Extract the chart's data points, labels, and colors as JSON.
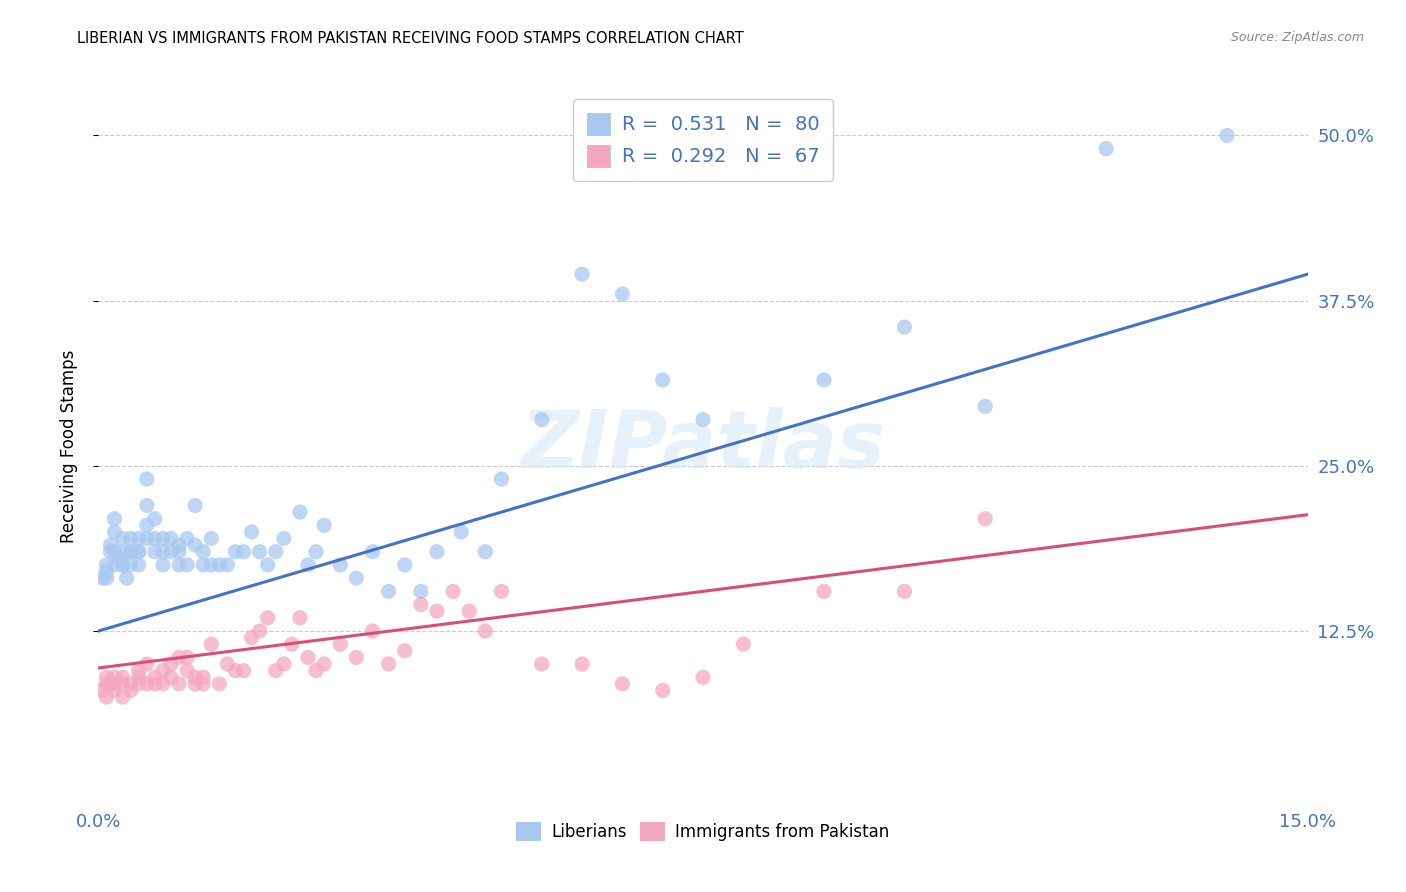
{
  "title": "LIBERIAN VS IMMIGRANTS FROM PAKISTAN RECEIVING FOOD STAMPS CORRELATION CHART",
  "source": "Source: ZipAtlas.com",
  "ylabel": "Receiving Food Stamps",
  "xlim": [
    0.0,
    0.15
  ],
  "ylim": [
    -0.005,
    0.535
  ],
  "yticks": [
    0.125,
    0.25,
    0.375,
    0.5
  ],
  "ytick_labels": [
    "12.5%",
    "25.0%",
    "37.5%",
    "50.0%"
  ],
  "xticks": [
    0.0,
    0.05,
    0.1,
    0.15
  ],
  "xtick_labels": [
    "0.0%",
    "",
    "",
    "15.0%"
  ],
  "watermark": "ZIPatlas",
  "color_liberian": "#A8C8F0",
  "color_pakistan": "#F4A8C0",
  "color_line_liberian": "#4472C4",
  "color_line_pakistan": "#D94F70",
  "background_color": "#FFFFFF",
  "lib_line_x0": 0.0,
  "lib_line_y0": 0.125,
  "lib_line_x1": 0.15,
  "lib_line_y1": 0.395,
  "pak_line_x0": 0.0,
  "pak_line_y0": 0.097,
  "pak_line_x1": 0.15,
  "pak_line_y1": 0.213,
  "liberian_x": [
    0.0005,
    0.001,
    0.001,
    0.001,
    0.0015,
    0.0015,
    0.002,
    0.002,
    0.002,
    0.002,
    0.0025,
    0.003,
    0.003,
    0.003,
    0.003,
    0.0035,
    0.004,
    0.004,
    0.004,
    0.004,
    0.005,
    0.005,
    0.005,
    0.005,
    0.006,
    0.006,
    0.006,
    0.006,
    0.007,
    0.007,
    0.007,
    0.008,
    0.008,
    0.008,
    0.009,
    0.009,
    0.01,
    0.01,
    0.01,
    0.011,
    0.011,
    0.012,
    0.012,
    0.013,
    0.013,
    0.014,
    0.014,
    0.015,
    0.016,
    0.017,
    0.018,
    0.019,
    0.02,
    0.021,
    0.022,
    0.023,
    0.025,
    0.026,
    0.027,
    0.028,
    0.03,
    0.032,
    0.034,
    0.036,
    0.038,
    0.04,
    0.042,
    0.045,
    0.048,
    0.05,
    0.055,
    0.06,
    0.065,
    0.07,
    0.075,
    0.09,
    0.1,
    0.11,
    0.125,
    0.14
  ],
  "liberian_y": [
    0.165,
    0.175,
    0.165,
    0.17,
    0.185,
    0.19,
    0.175,
    0.185,
    0.2,
    0.21,
    0.18,
    0.175,
    0.195,
    0.185,
    0.175,
    0.165,
    0.185,
    0.195,
    0.175,
    0.185,
    0.185,
    0.195,
    0.175,
    0.185,
    0.22,
    0.24,
    0.195,
    0.205,
    0.185,
    0.195,
    0.21,
    0.175,
    0.185,
    0.195,
    0.185,
    0.195,
    0.19,
    0.175,
    0.185,
    0.195,
    0.175,
    0.22,
    0.19,
    0.175,
    0.185,
    0.175,
    0.195,
    0.175,
    0.175,
    0.185,
    0.185,
    0.2,
    0.185,
    0.175,
    0.185,
    0.195,
    0.215,
    0.175,
    0.185,
    0.205,
    0.175,
    0.165,
    0.185,
    0.155,
    0.175,
    0.155,
    0.185,
    0.2,
    0.185,
    0.24,
    0.285,
    0.395,
    0.38,
    0.315,
    0.285,
    0.315,
    0.355,
    0.295,
    0.49,
    0.5
  ],
  "pakistan_x": [
    0.0005,
    0.001,
    0.001,
    0.001,
    0.0015,
    0.002,
    0.002,
    0.002,
    0.003,
    0.003,
    0.003,
    0.004,
    0.004,
    0.005,
    0.005,
    0.005,
    0.006,
    0.006,
    0.007,
    0.007,
    0.008,
    0.008,
    0.009,
    0.009,
    0.01,
    0.01,
    0.011,
    0.011,
    0.012,
    0.012,
    0.013,
    0.013,
    0.014,
    0.015,
    0.016,
    0.017,
    0.018,
    0.019,
    0.02,
    0.021,
    0.022,
    0.023,
    0.024,
    0.025,
    0.026,
    0.027,
    0.028,
    0.03,
    0.032,
    0.034,
    0.036,
    0.038,
    0.04,
    0.042,
    0.044,
    0.046,
    0.048,
    0.05,
    0.055,
    0.06,
    0.065,
    0.07,
    0.075,
    0.08,
    0.09,
    0.1,
    0.11
  ],
  "pakistan_y": [
    0.08,
    0.085,
    0.075,
    0.09,
    0.085,
    0.08,
    0.09,
    0.085,
    0.085,
    0.075,
    0.09,
    0.085,
    0.08,
    0.085,
    0.09,
    0.095,
    0.1,
    0.085,
    0.09,
    0.085,
    0.095,
    0.085,
    0.09,
    0.1,
    0.105,
    0.085,
    0.095,
    0.105,
    0.085,
    0.09,
    0.085,
    0.09,
    0.115,
    0.085,
    0.1,
    0.095,
    0.095,
    0.12,
    0.125,
    0.135,
    0.095,
    0.1,
    0.115,
    0.135,
    0.105,
    0.095,
    0.1,
    0.115,
    0.105,
    0.125,
    0.1,
    0.11,
    0.145,
    0.14,
    0.155,
    0.14,
    0.125,
    0.155,
    0.1,
    0.1,
    0.085,
    0.08,
    0.09,
    0.115,
    0.155,
    0.155,
    0.21
  ]
}
